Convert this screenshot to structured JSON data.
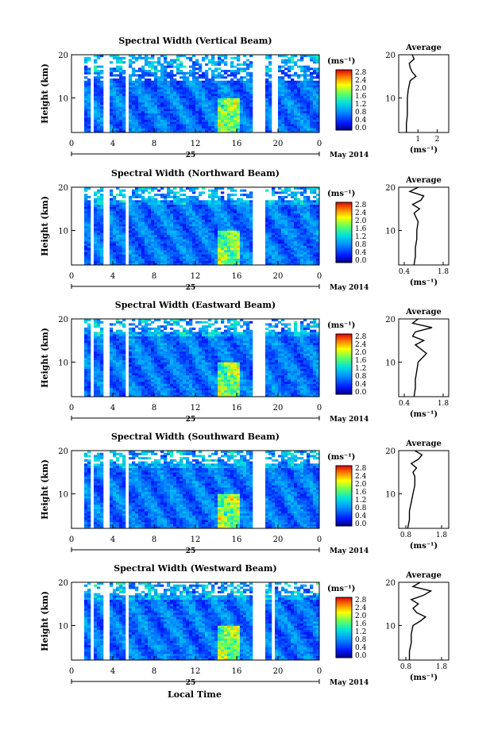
{
  "figure": {
    "xlabel": "Local Time",
    "date_label": "May 2014",
    "day_label": "25",
    "unit_label": "(ms⁻¹)",
    "avg_title": "Average",
    "avg_xlabel": "(ms⁻¹)",
    "ylabel": "Height (km)"
  },
  "chart_data": [
    {
      "type": "heatmap",
      "title": "Spectral Width (Vertical Beam)",
      "xticks": [
        "0",
        "4",
        "8",
        "12",
        "16",
        "20",
        "0"
      ],
      "xlim": [
        0,
        24
      ],
      "yticks": [
        "20",
        "10"
      ],
      "ylim": [
        2,
        20
      ],
      "colorbar_ticks": [
        "2.8",
        "2.4",
        "2.0",
        "1.6",
        "1.2",
        "0.8",
        "0.4",
        "0.0"
      ],
      "colorbar_range": [
        0,
        2.8
      ],
      "data_gaps_hours": [
        [
          0,
          1.2
        ],
        [
          1.9,
          2.3
        ],
        [
          3.1,
          3.6
        ],
        [
          5.1,
          5.6
        ],
        [
          17.6,
          18.7
        ],
        [
          19.3,
          20.0
        ]
      ],
      "average_profile": {
        "xlabel": "(ms⁻¹)",
        "xticks": [
          "1",
          "2"
        ],
        "xlim": [
          0,
          2.6
        ],
        "height_km": [
          2,
          4,
          6,
          8,
          10,
          12,
          13,
          14,
          15,
          16,
          17,
          18,
          19,
          20
        ],
        "width_ms": [
          0.4,
          0.4,
          0.45,
          0.45,
          0.45,
          0.5,
          0.55,
          0.6,
          0.9,
          0.7,
          0.6,
          0.55,
          0.8,
          0.7
        ]
      }
    },
    {
      "type": "heatmap",
      "title": "Spectral Width (Northward Beam)",
      "xticks": [
        "0",
        "4",
        "8",
        "12",
        "16",
        "20",
        "0"
      ],
      "xlim": [
        0,
        24
      ],
      "yticks": [
        "20",
        "10"
      ],
      "ylim": [
        2,
        20
      ],
      "colorbar_ticks": [
        "2.8",
        "2.4",
        "2.0",
        "1.6",
        "1.2",
        "0.8",
        "0.4",
        "0.0"
      ],
      "colorbar_range": [
        0,
        2.8
      ],
      "data_gaps_hours": [
        [
          0,
          1.2
        ],
        [
          1.9,
          2.3
        ],
        [
          3.1,
          3.6
        ],
        [
          5.1,
          5.6
        ],
        [
          17.6,
          18.7
        ]
      ],
      "average_profile": {
        "xlabel": "(ms⁻¹)",
        "xticks": [
          "0.4",
          "1.8"
        ],
        "xlim": [
          0.2,
          2.0
        ],
        "height_km": [
          2,
          4,
          6,
          8,
          10,
          12,
          14,
          15,
          16,
          17,
          18,
          19,
          20
        ],
        "width_ms": [
          0.75,
          0.8,
          0.8,
          0.85,
          0.85,
          0.9,
          0.75,
          0.95,
          0.7,
          1.0,
          1.1,
          0.6,
          0.9
        ]
      }
    },
    {
      "type": "heatmap",
      "title": "Spectral Width (Eastward Beam)",
      "xticks": [
        "0",
        "4",
        "8",
        "12",
        "16",
        "20",
        "0"
      ],
      "xlim": [
        0,
        24
      ],
      "yticks": [
        "20",
        "10"
      ],
      "ylim": [
        2,
        20
      ],
      "colorbar_ticks": [
        "2.8",
        "2.4",
        "2.0",
        "1.6",
        "1.2",
        "0.8",
        "0.4",
        "0.0"
      ],
      "colorbar_range": [
        0,
        2.8
      ],
      "data_gaps_hours": [
        [
          0,
          1.2
        ],
        [
          1.9,
          2.3
        ],
        [
          3.1,
          3.6
        ],
        [
          5.1,
          5.6
        ],
        [
          17.6,
          18.7
        ]
      ],
      "average_profile": {
        "xlabel": "(ms⁻¹)",
        "xticks": [
          "0.4",
          "1.8"
        ],
        "xlim": [
          0.2,
          2.0
        ],
        "height_km": [
          2,
          4,
          6,
          8,
          10,
          11,
          12,
          13,
          14,
          15,
          16,
          17,
          18,
          19,
          20
        ],
        "width_ms": [
          0.75,
          0.8,
          0.8,
          0.85,
          0.9,
          1.05,
          1.2,
          1.0,
          0.8,
          1.1,
          0.7,
          0.8,
          1.4,
          0.7,
          0.9
        ]
      }
    },
    {
      "type": "heatmap",
      "title": "Spectral Width (Southward Beam)",
      "xticks": [
        "0",
        "4",
        "8",
        "12",
        "16",
        "20",
        "0"
      ],
      "xlim": [
        0,
        24
      ],
      "yticks": [
        "20",
        "10"
      ],
      "ylim": [
        2,
        20
      ],
      "colorbar_ticks": [
        "2.8",
        "2.4",
        "2.0",
        "1.6",
        "1.2",
        "0.8",
        "0.4",
        "0.0"
      ],
      "colorbar_range": [
        0,
        2.8
      ],
      "data_gaps_hours": [
        [
          0,
          1.2
        ],
        [
          1.9,
          2.3
        ],
        [
          3.1,
          3.6
        ],
        [
          5.1,
          5.6
        ],
        [
          17.6,
          18.7
        ]
      ],
      "average_profile": {
        "xlabel": "(ms⁻¹)",
        "xticks": [
          "0.8",
          "1.8"
        ],
        "xlim": [
          0.6,
          2.0
        ],
        "height_km": [
          2,
          4,
          6,
          8,
          10,
          12,
          14,
          15,
          16,
          17,
          18,
          19,
          20
        ],
        "width_ms": [
          0.85,
          0.9,
          0.9,
          0.95,
          1.0,
          1.05,
          1.05,
          1.0,
          1.1,
          0.95,
          1.15,
          1.25,
          1.05
        ]
      }
    },
    {
      "type": "heatmap",
      "title": "Spectral Width (Westward Beam)",
      "xticks": [
        "0",
        "4",
        "8",
        "12",
        "16",
        "20",
        "0"
      ],
      "xlim": [
        0,
        24
      ],
      "yticks": [
        "20",
        "10"
      ],
      "ylim": [
        2,
        20
      ],
      "colorbar_ticks": [
        "2.8",
        "2.4",
        "2.0",
        "1.6",
        "1.2",
        "0.8",
        "0.4",
        "0.0"
      ],
      "colorbar_range": [
        0,
        2.8
      ],
      "data_gaps_hours": [
        [
          0,
          1.2
        ],
        [
          1.9,
          2.3
        ],
        [
          3.1,
          3.6
        ],
        [
          5.1,
          5.6
        ],
        [
          17.6,
          18.7
        ],
        [
          19.3,
          19.7
        ]
      ],
      "average_profile": {
        "xlabel": "(ms⁻¹)",
        "xticks": [
          "0.8",
          "1.8"
        ],
        "xlim": [
          0.6,
          2.0
        ],
        "height_km": [
          2,
          4,
          6,
          8,
          10,
          11,
          12,
          13,
          14,
          15,
          16,
          17,
          18,
          19,
          20
        ],
        "width_ms": [
          0.9,
          0.9,
          0.95,
          0.95,
          1.0,
          1.2,
          1.35,
          1.1,
          1.0,
          1.15,
          0.95,
          1.3,
          1.5,
          1.0,
          1.2
        ]
      }
    }
  ]
}
